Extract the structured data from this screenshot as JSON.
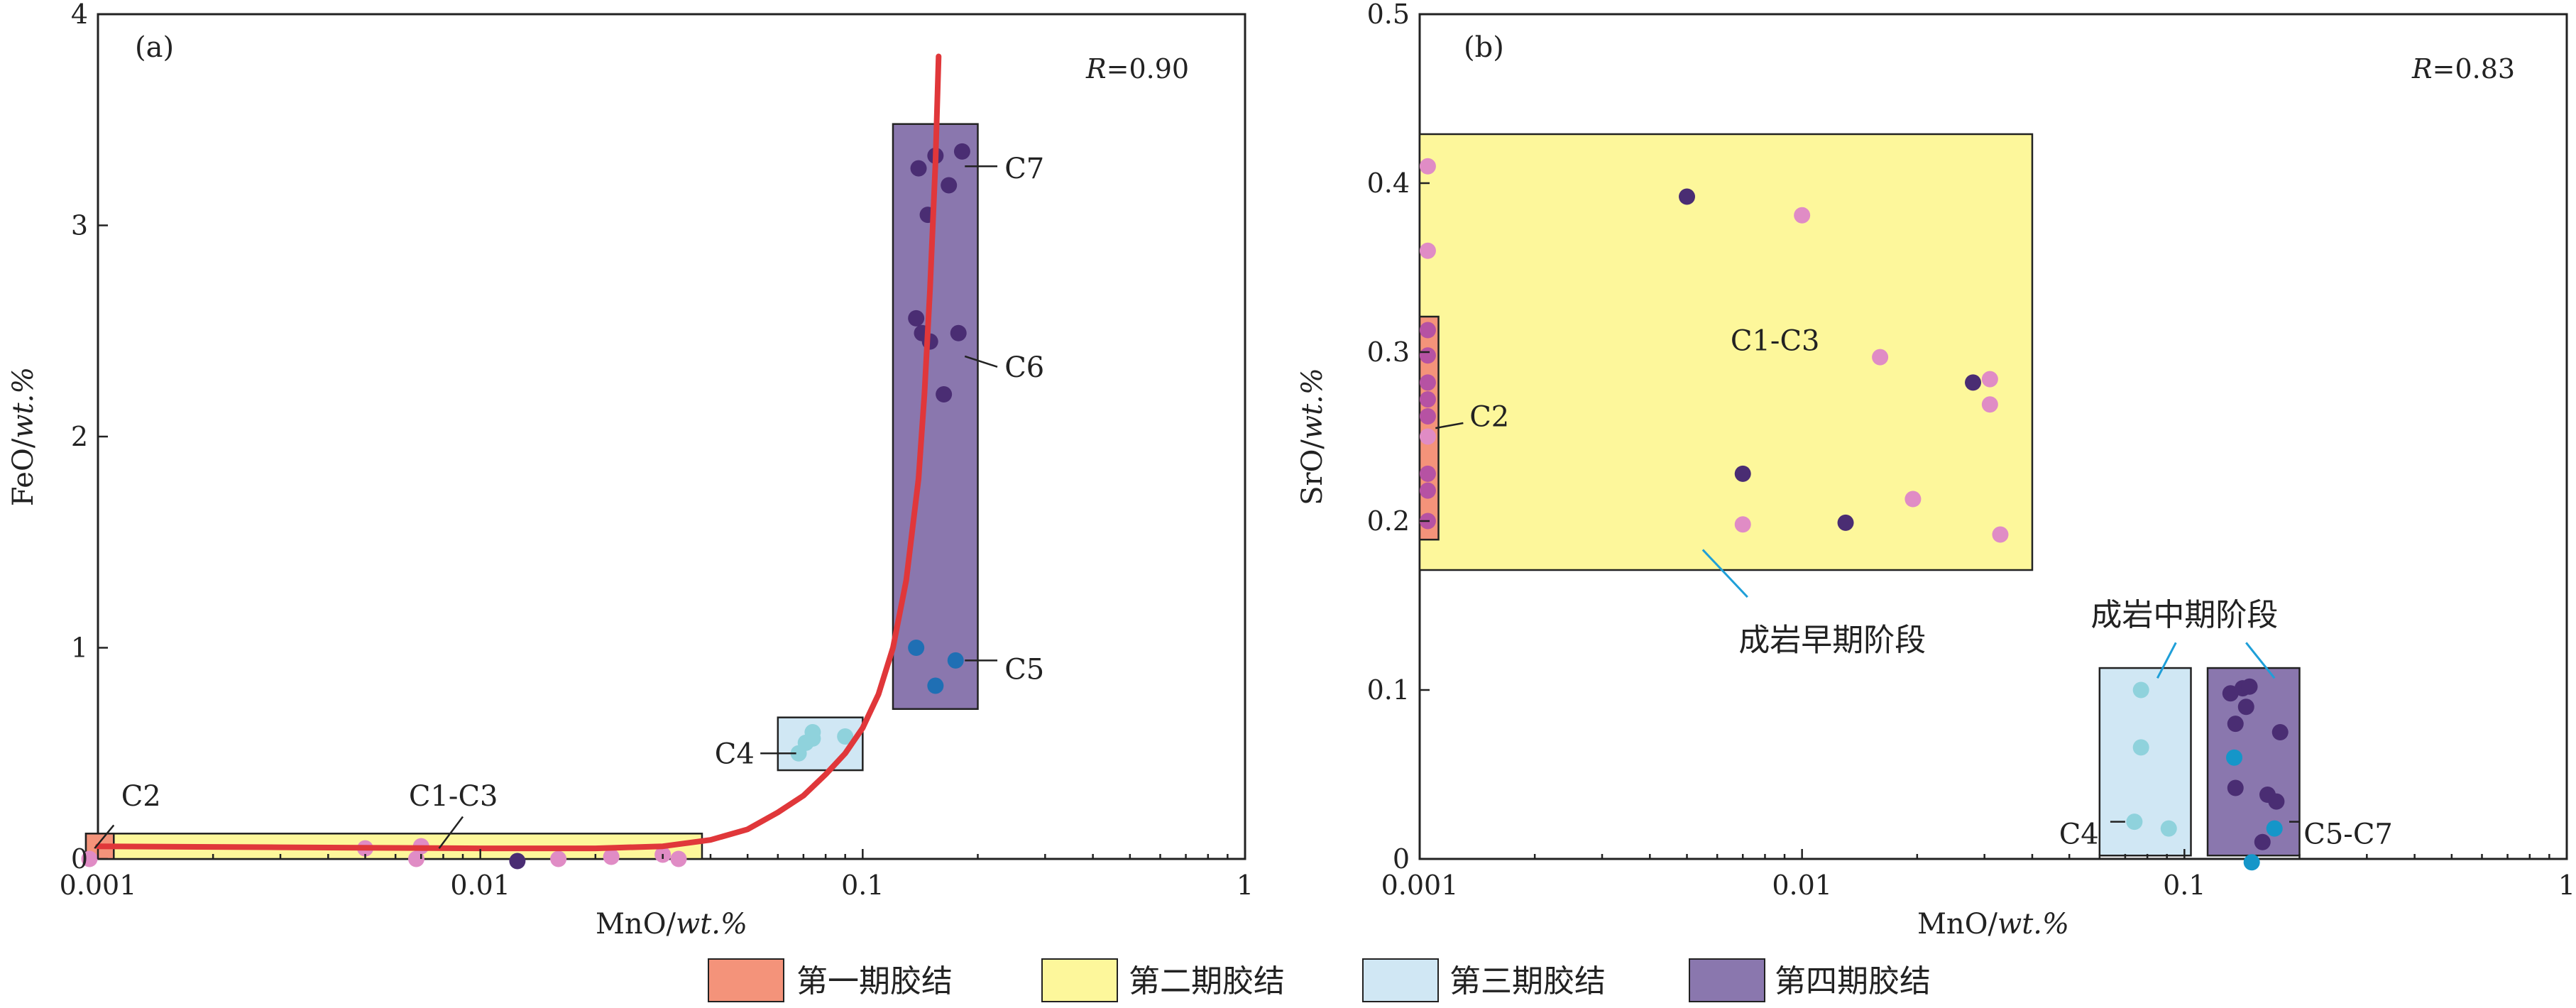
{
  "colors": {
    "stage1": "#f4937a",
    "stage2": "#fdf79b",
    "stage3": "#d0e7f4",
    "stage4": "#8a77ae",
    "fit": "#e0373a",
    "pink": "#e08cc5",
    "magenta": "#b652a3",
    "darkpurple": "#4a2d73",
    "cyan": "#8fd2dc",
    "blue": "#1f6fb4",
    "tealblue": "#1596c9"
  },
  "legend": [
    {
      "label": "第一期胶结",
      "color": "#f4937a"
    },
    {
      "label": "第二期胶结",
      "color": "#fdf79b"
    },
    {
      "label": "第三期胶结",
      "color": "#d0e7f4"
    },
    {
      "label": "第四期胶结",
      "color": "#8a77ae"
    }
  ],
  "chart_data": [
    {
      "type": "scatter",
      "panel": "(a)",
      "r_prefix": "R",
      "r_value": "=0.90",
      "xlabel_prefix": "MnO/",
      "xlabel_unit": "wt.%",
      "ylabel_prefix": "FeO/",
      "ylabel_unit": "wt.%",
      "xscale": "log",
      "xlim": [
        0.001,
        1
      ],
      "ylim": [
        0,
        4
      ],
      "xticks": [
        {
          "v": 0.001,
          "label": "0.001"
        },
        {
          "v": 0.01,
          "label": "0.01"
        },
        {
          "v": 0.1,
          "label": "0.1"
        },
        {
          "v": 1,
          "label": "1"
        }
      ],
      "yticks": [
        {
          "v": 0,
          "label": "0"
        },
        {
          "v": 1,
          "label": "1"
        },
        {
          "v": 2,
          "label": "2"
        },
        {
          "v": 3,
          "label": "3"
        },
        {
          "v": 4,
          "label": "4"
        }
      ],
      "regions": [
        {
          "stage": "stage2",
          "x": [
            0.00093,
            0.038
          ],
          "y": [
            0.0,
            0.12
          ]
        },
        {
          "stage": "stage1",
          "x": [
            0.00093,
            0.0011
          ],
          "y": [
            0.0,
            0.12
          ]
        },
        {
          "stage": "stage3",
          "x": [
            0.06,
            0.1
          ],
          "y": [
            0.42,
            0.67
          ]
        },
        {
          "stage": "stage4",
          "x": [
            0.12,
            0.2
          ],
          "y": [
            0.71,
            3.48
          ]
        }
      ],
      "fit_curve": {
        "x": [
          0.001,
          0.003,
          0.01,
          0.02,
          0.03,
          0.04,
          0.05,
          0.06,
          0.07,
          0.08,
          0.09,
          0.1,
          0.11,
          0.12,
          0.13,
          0.14,
          0.145,
          0.15,
          0.155,
          0.158
        ],
        "y": [
          0.06,
          0.055,
          0.05,
          0.05,
          0.06,
          0.09,
          0.14,
          0.22,
          0.3,
          0.4,
          0.5,
          0.62,
          0.78,
          1.0,
          1.32,
          1.8,
          2.2,
          2.7,
          3.3,
          3.8
        ]
      },
      "points": [
        {
          "x": 0.00095,
          "y": 0.0,
          "c": "pink"
        },
        {
          "x": 0.005,
          "y": 0.05,
          "c": "pink"
        },
        {
          "x": 0.0068,
          "y": 0.0,
          "c": "pink"
        },
        {
          "x": 0.007,
          "y": 0.06,
          "c": "pink"
        },
        {
          "x": 0.0125,
          "y": -0.01,
          "c": "darkpurple"
        },
        {
          "x": 0.016,
          "y": 0.0,
          "c": "pink"
        },
        {
          "x": 0.022,
          "y": 0.01,
          "c": "pink"
        },
        {
          "x": 0.03,
          "y": 0.02,
          "c": "pink"
        },
        {
          "x": 0.033,
          "y": 0.0,
          "c": "pink"
        },
        {
          "x": 0.068,
          "y": 0.5,
          "c": "cyan"
        },
        {
          "x": 0.071,
          "y": 0.55,
          "c": "cyan"
        },
        {
          "x": 0.074,
          "y": 0.6,
          "c": "cyan"
        },
        {
          "x": 0.074,
          "y": 0.57,
          "c": "cyan"
        },
        {
          "x": 0.09,
          "y": 0.58,
          "c": "cyan"
        },
        {
          "x": 0.14,
          "y": 3.27,
          "c": "darkpurple"
        },
        {
          "x": 0.155,
          "y": 3.33,
          "c": "darkpurple"
        },
        {
          "x": 0.182,
          "y": 3.35,
          "c": "darkpurple"
        },
        {
          "x": 0.168,
          "y": 3.19,
          "c": "darkpurple"
        },
        {
          "x": 0.148,
          "y": 3.05,
          "c": "darkpurple"
        },
        {
          "x": 0.138,
          "y": 2.56,
          "c": "darkpurple"
        },
        {
          "x": 0.143,
          "y": 2.49,
          "c": "darkpurple"
        },
        {
          "x": 0.15,
          "y": 2.45,
          "c": "darkpurple"
        },
        {
          "x": 0.178,
          "y": 2.49,
          "c": "darkpurple"
        },
        {
          "x": 0.163,
          "y": 2.2,
          "c": "darkpurple"
        },
        {
          "x": 0.138,
          "y": 1.0,
          "c": "blue"
        },
        {
          "x": 0.155,
          "y": 0.82,
          "c": "blue"
        },
        {
          "x": 0.175,
          "y": 0.94,
          "c": "blue"
        }
      ],
      "annotations": [
        {
          "label": "C2",
          "tx": 0.00115,
          "ty": 0.3,
          "lx1": 0.0011,
          "ly1": 0.16,
          "lx2": 0.00098,
          "ly2": 0.05
        },
        {
          "label": "C1-C3",
          "tx": 0.0065,
          "ty": 0.3,
          "lx1": 0.009,
          "ly1": 0.2,
          "lx2": 0.0078,
          "ly2": 0.05
        },
        {
          "label": "C4",
          "tx": 0.041,
          "ty": 0.5,
          "lx1": 0.054,
          "ly1": 0.5,
          "lx2": 0.067,
          "ly2": 0.5
        },
        {
          "label": "C7",
          "tx": 0.235,
          "ty": 3.27,
          "lx1": 0.185,
          "ly1": 3.28,
          "lx2": 0.225,
          "ly2": 3.28
        },
        {
          "label": "C6",
          "tx": 0.235,
          "ty": 2.33,
          "lx1": 0.185,
          "ly1": 2.38,
          "lx2": 0.225,
          "ly2": 2.33
        },
        {
          "label": "C5",
          "tx": 0.235,
          "ty": 0.9,
          "lx1": 0.185,
          "ly1": 0.94,
          "lx2": 0.225,
          "ly2": 0.94
        }
      ]
    },
    {
      "type": "scatter",
      "panel": "(b)",
      "r_prefix": "R",
      "r_value": "=0.83",
      "xlabel_prefix": "MnO/",
      "xlabel_unit": "wt.%",
      "ylabel_prefix": "SrO/",
      "ylabel_unit": "wt.%",
      "xscale": "log",
      "xlim": [
        0.001,
        1
      ],
      "ylim": [
        0,
        0.5
      ],
      "xticks": [
        {
          "v": 0.001,
          "label": "0.001"
        },
        {
          "v": 0.01,
          "label": "0.01"
        },
        {
          "v": 0.1,
          "label": "0.1"
        },
        {
          "v": 1,
          "label": "1"
        }
      ],
      "yticks": [
        {
          "v": 0,
          "label": "0"
        },
        {
          "v": 0.1,
          "label": "0.1"
        },
        {
          "v": 0.2,
          "label": "0.2"
        },
        {
          "v": 0.3,
          "label": "0.3"
        },
        {
          "v": 0.4,
          "label": "0.4"
        },
        {
          "v": 0.5,
          "label": "0.5"
        }
      ],
      "regions": [
        {
          "stage": "stage2",
          "x": [
            0.001,
            0.04
          ],
          "y": [
            0.171,
            0.429
          ]
        },
        {
          "stage": "stage1",
          "x": [
            0.001,
            0.00112
          ],
          "y": [
            0.189,
            0.321
          ]
        },
        {
          "stage": "stage3",
          "x": [
            0.06,
            0.104
          ],
          "y": [
            0.002,
            0.113
          ]
        },
        {
          "stage": "stage4",
          "x": [
            0.115,
            0.2
          ],
          "y": [
            0.002,
            0.113
          ]
        }
      ],
      "points": [
        {
          "x": 0.00105,
          "y": 0.41,
          "c": "pink"
        },
        {
          "x": 0.00105,
          "y": 0.36,
          "c": "pink"
        },
        {
          "x": 0.00105,
          "y": 0.313,
          "c": "magenta"
        },
        {
          "x": 0.00105,
          "y": 0.298,
          "c": "magenta"
        },
        {
          "x": 0.00105,
          "y": 0.282,
          "c": "magenta"
        },
        {
          "x": 0.00105,
          "y": 0.272,
          "c": "magenta"
        },
        {
          "x": 0.00105,
          "y": 0.262,
          "c": "magenta"
        },
        {
          "x": 0.00105,
          "y": 0.25,
          "c": "pink"
        },
        {
          "x": 0.00105,
          "y": 0.228,
          "c": "magenta"
        },
        {
          "x": 0.00105,
          "y": 0.218,
          "c": "magenta"
        },
        {
          "x": 0.00105,
          "y": 0.2,
          "c": "magenta"
        },
        {
          "x": 0.005,
          "y": 0.392,
          "c": "darkpurple"
        },
        {
          "x": 0.01,
          "y": 0.381,
          "c": "pink"
        },
        {
          "x": 0.016,
          "y": 0.297,
          "c": "pink"
        },
        {
          "x": 0.028,
          "y": 0.282,
          "c": "darkpurple"
        },
        {
          "x": 0.031,
          "y": 0.284,
          "c": "pink"
        },
        {
          "x": 0.031,
          "y": 0.269,
          "c": "pink"
        },
        {
          "x": 0.007,
          "y": 0.228,
          "c": "darkpurple"
        },
        {
          "x": 0.007,
          "y": 0.198,
          "c": "pink"
        },
        {
          "x": 0.013,
          "y": 0.199,
          "c": "darkpurple"
        },
        {
          "x": 0.0195,
          "y": 0.213,
          "c": "pink"
        },
        {
          "x": 0.033,
          "y": 0.192,
          "c": "pink"
        },
        {
          "x": 0.077,
          "y": 0.1,
          "c": "cyan"
        },
        {
          "x": 0.077,
          "y": 0.066,
          "c": "cyan"
        },
        {
          "x": 0.074,
          "y": 0.022,
          "c": "cyan"
        },
        {
          "x": 0.091,
          "y": 0.018,
          "c": "cyan"
        },
        {
          "x": 0.132,
          "y": 0.098,
          "c": "darkpurple"
        },
        {
          "x": 0.142,
          "y": 0.101,
          "c": "darkpurple"
        },
        {
          "x": 0.148,
          "y": 0.102,
          "c": "darkpurple"
        },
        {
          "x": 0.145,
          "y": 0.09,
          "c": "darkpurple"
        },
        {
          "x": 0.136,
          "y": 0.08,
          "c": "darkpurple"
        },
        {
          "x": 0.178,
          "y": 0.075,
          "c": "darkpurple"
        },
        {
          "x": 0.135,
          "y": 0.06,
          "c": "tealblue"
        },
        {
          "x": 0.165,
          "y": 0.038,
          "c": "darkpurple"
        },
        {
          "x": 0.174,
          "y": 0.034,
          "c": "darkpurple"
        },
        {
          "x": 0.136,
          "y": 0.042,
          "c": "darkpurple"
        },
        {
          "x": 0.172,
          "y": 0.018,
          "c": "tealblue"
        },
        {
          "x": 0.16,
          "y": 0.01,
          "c": "darkpurple"
        },
        {
          "x": 0.15,
          "y": -0.002,
          "c": "tealblue"
        }
      ],
      "annotations": [
        {
          "label": "C1-C3",
          "tx": 0.0065,
          "ty": 0.307,
          "lx1": 0.0,
          "ly1": 0.0,
          "lx2": 0.0,
          "ly2": 0.0
        },
        {
          "label": "C2",
          "tx": 0.00135,
          "ty": 0.262,
          "lx1": 0.0011,
          "ly1": 0.255,
          "lx2": 0.0013,
          "ly2": 0.258
        },
        {
          "label": "C4",
          "tx": 0.047,
          "ty": 0.015,
          "lx1": 0.064,
          "ly1": 0.022,
          "lx2": 0.07,
          "ly2": 0.022
        },
        {
          "label": "C5-C7",
          "tx": 0.205,
          "ty": 0.015,
          "lx1": 0.188,
          "ly1": 0.022,
          "lx2": 0.2,
          "ly2": 0.022
        }
      ],
      "stage_notes": [
        {
          "label": "成岩早期阶段",
          "tx": 0.012,
          "ty": 0.13,
          "lx1": 0.0055,
          "ly1": 0.183,
          "lx2": 0.0072,
          "ly2": 0.155
        },
        {
          "label": "成岩中期阶段",
          "tx": 0.1,
          "ty": 0.145,
          "lx1": 0.085,
          "ly1": 0.107,
          "lx2": 0.095,
          "ly2": 0.128,
          "lx3": 0.145,
          "ly3": 0.128,
          "lx4": 0.172,
          "ly4": 0.107
        }
      ]
    }
  ]
}
